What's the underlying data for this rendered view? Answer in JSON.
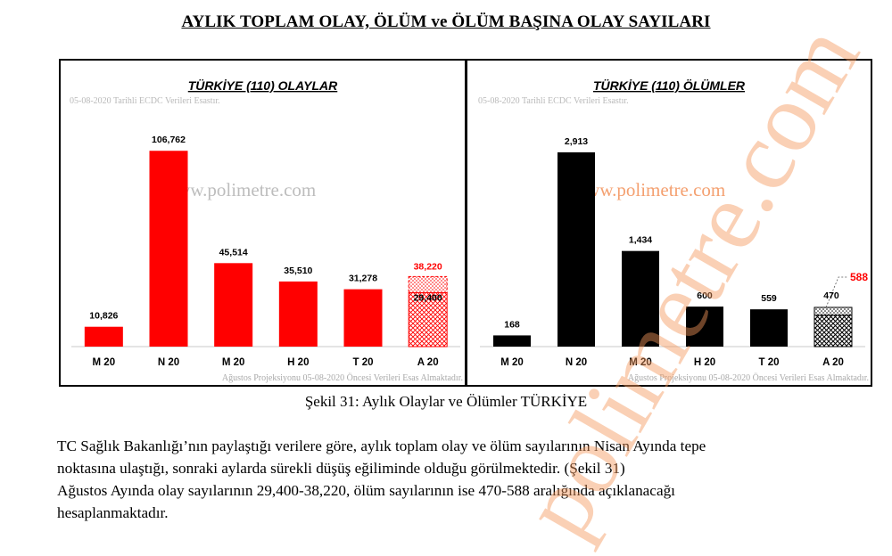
{
  "page": {
    "title": "AYLIK TOPLAM OLAY, ÖLÜM ve ÖLÜM BAŞINA OLAY SAYILARI",
    "caption": "Şekil 31: Aylık Olaylar ve Ölümler TÜRKİYE",
    "paragraph_lines": [
      "TC Sağlık Bakanlığı’nın paylaştığı verilere göre, aylık toplam olay ve ölüm sayılarının Nisan Ayında tepe",
      "noktasına ulaştığı, sonraki aylarda sürekli düşüş eğiliminde olduğu görülmektedir. (Şekil 31)",
      "Ağustos Ayında olay sayılarının 29,400-38,220, ölüm sayılarının ise 470-588 aralığında açıklanacağı",
      "hesaplanmaktadır."
    ],
    "big_watermark": "polimetre.com"
  },
  "chart_data": [
    {
      "type": "bar",
      "title": "TÜRKİYE (110) OLAYLAR",
      "subtitle": "05-08-2020 Tarihli ECDC Verileri Esastır.",
      "footnote": "Ağustos Projeksiyonu 05-08-2020 Öncesi Verileri Esas Almaktadır.",
      "watermark": "www.polimetre.com",
      "categories": [
        "M 20",
        "N 20",
        "M 20",
        "H 20",
        "T 20",
        "A 20"
      ],
      "values": [
        10826,
        106762,
        45514,
        35510,
        31278,
        38220
      ],
      "value_labels": [
        "10,826",
        "106,762",
        "45,514",
        "35,510",
        "31,278",
        "38,220"
      ],
      "projection": {
        "category": "A 20",
        "low": 29400,
        "high": 38220,
        "low_label": "29,400",
        "high_label": "38,220"
      },
      "ylim": [
        0,
        120000
      ],
      "bar_color": "#ff0000",
      "highlight_color": "#ff0000",
      "grid": false
    },
    {
      "type": "bar",
      "title": "TÜRKİYE (110) ÖLÜMLER",
      "subtitle": "05-08-2020 Tarihli ECDC Verileri Esastır.",
      "footnote": "Ağustos Projeksiyonu 05-08-2020 Öncesi Verileri Esas Almaktadır.",
      "watermark": "www.polimetre.com",
      "categories": [
        "M 20",
        "N 20",
        "M 20",
        "H 20",
        "T 20",
        "A 20"
      ],
      "values": [
        168,
        2913,
        1434,
        600,
        559,
        588
      ],
      "value_labels": [
        "168",
        "2,913",
        "1,434",
        "600",
        "559",
        "588"
      ],
      "projection": {
        "category": "A 20",
        "low": 470,
        "high": 588,
        "low_label": "470",
        "high_label": "588"
      },
      "ylim": [
        0,
        3300
      ],
      "bar_color": "#000000",
      "highlight_color": "#ff0000",
      "grid": false
    }
  ]
}
